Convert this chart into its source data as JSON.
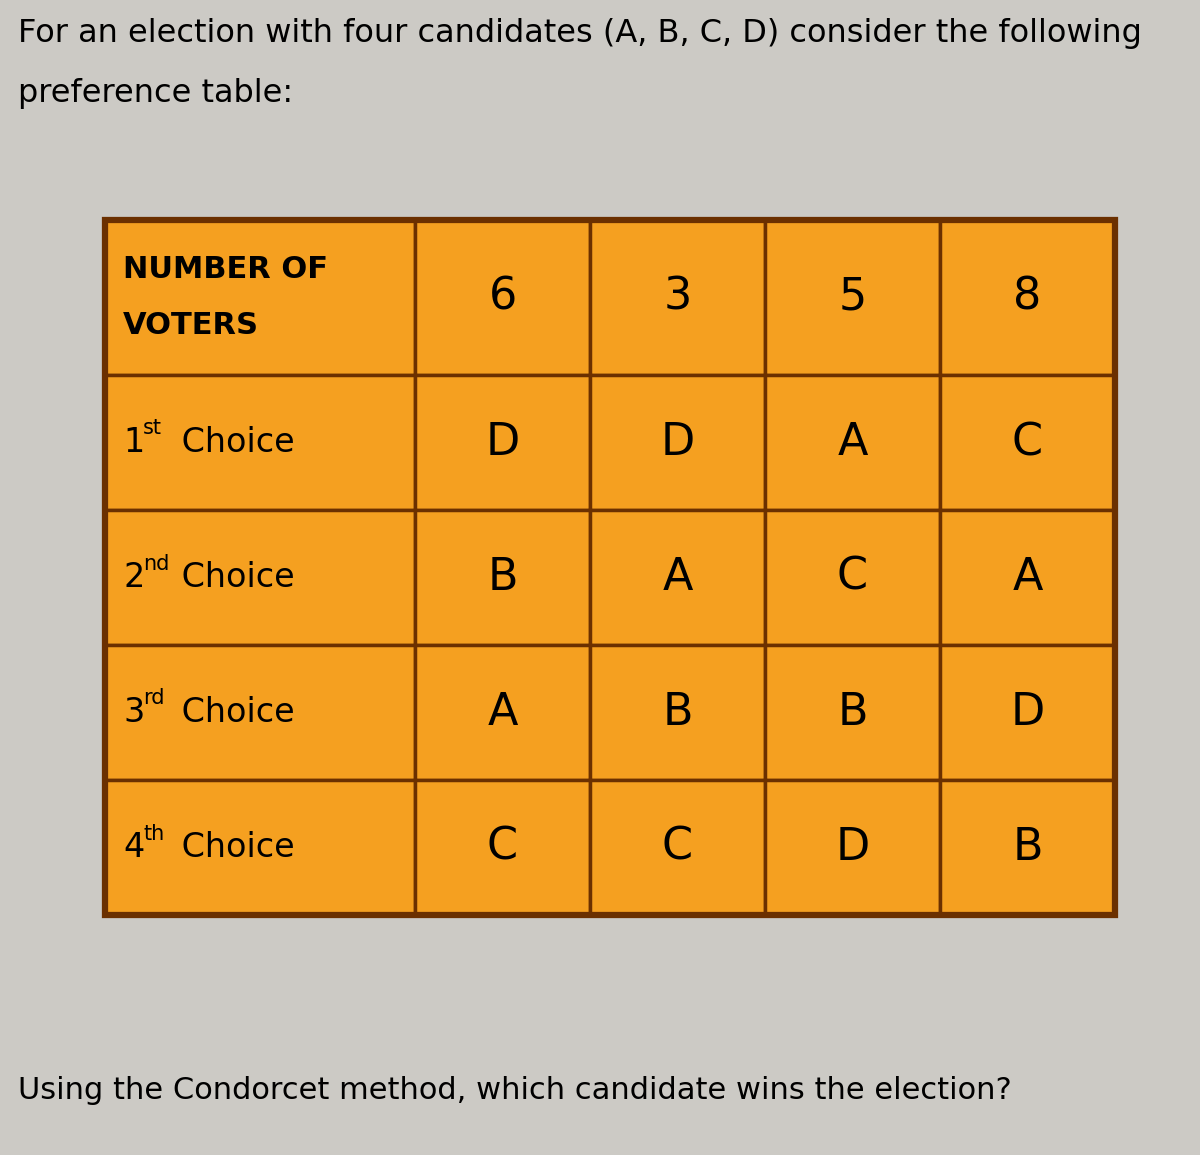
{
  "title_line1": "For an election with four candidates (A, B, C, D) consider the following",
  "title_line2": "preference table:",
  "footer": "Using the Condorcet method, which candidate wins the election?",
  "bg_color": "#cccac5",
  "orange_color": "#F5A020",
  "border_color": "#6B3000",
  "col_headers": [
    "6",
    "3",
    "5",
    "8"
  ],
  "table_data": [
    [
      "D",
      "D",
      "A",
      "C"
    ],
    [
      "B",
      "A",
      "C",
      "A"
    ],
    [
      "A",
      "B",
      "B",
      "D"
    ],
    [
      "C",
      "C",
      "D",
      "B"
    ]
  ],
  "title_fontsize": 23,
  "footer_fontsize": 22,
  "header_fontsize": 32,
  "cell_fontsize": 32,
  "label_fontsize": 23
}
